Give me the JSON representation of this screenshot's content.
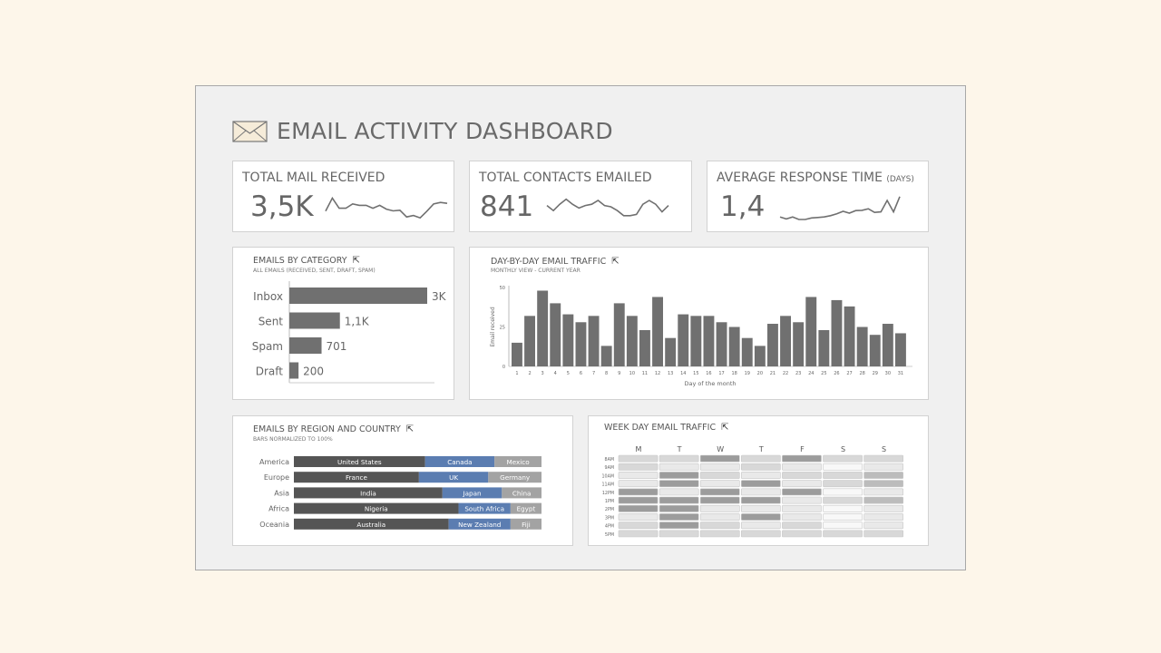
{
  "header": {
    "title": "EMAIL ACTIVITY DASHBOARD",
    "icon": "envelope-icon"
  },
  "kpis": [
    {
      "label": "TOTAL MAIL RECEIVED",
      "unit": "",
      "value": "3,5K",
      "sparkline": [
        0.35,
        0.8,
        0.45,
        0.45,
        0.6,
        0.55,
        0.55,
        0.45,
        0.55,
        0.42,
        0.36,
        0.38,
        0.15,
        0.2,
        0.12,
        0.35,
        0.6,
        0.65,
        0.62
      ]
    },
    {
      "label": "TOTAL CONTACTS EMAILED",
      "unit": "",
      "value": "841",
      "sparkline": [
        0.55,
        0.35,
        0.6,
        0.8,
        0.6,
        0.45,
        0.55,
        0.6,
        0.75,
        0.55,
        0.5,
        0.35,
        0.15,
        0.15,
        0.2,
        0.6,
        0.75,
        0.6,
        0.3,
        0.55
      ]
    },
    {
      "label": "AVERAGE RESPONSE TIME",
      "unit": "(DAYS)",
      "value": "1,4",
      "sparkline": [
        0.1,
        0.02,
        0.1,
        0.0,
        0.0,
        0.06,
        0.08,
        0.1,
        0.15,
        0.22,
        0.32,
        0.25,
        0.35,
        0.36,
        0.42,
        0.28,
        0.3,
        0.75,
        0.3,
        0.9
      ]
    }
  ],
  "category": {
    "title": "EMAILS BY CATEGORY",
    "subtitle": "ALL EMAILS (RECEIVED, SENT, DRAFT, SPAM)",
    "chart_data": {
      "type": "bar",
      "orientation": "horizontal",
      "categories": [
        "Inbox",
        "Sent",
        "Spam",
        "Draft"
      ],
      "values": [
        3000,
        1100,
        701,
        200
      ],
      "labels": [
        "3K",
        "1,1K",
        "701",
        "200"
      ],
      "color": "#707070"
    }
  },
  "daily": {
    "title": "DAY-BY-DAY EMAIL TRAFFIC",
    "subtitle": "MONTHLY VIEW - CURRENT YEAR",
    "chart_data": {
      "type": "bar",
      "xlabel": "Day of the month",
      "ylabel": "Email received",
      "ylim": [
        0,
        50
      ],
      "yticks": [
        "0",
        "25",
        "50"
      ],
      "categories": [
        "1",
        "2",
        "3",
        "4",
        "5",
        "6",
        "7",
        "8",
        "9",
        "10",
        "11",
        "12",
        "13",
        "14",
        "15",
        "16",
        "17",
        "18",
        "19",
        "20",
        "21",
        "22",
        "23",
        "24",
        "25",
        "26",
        "27",
        "28",
        "29",
        "30",
        "31"
      ],
      "values": [
        15,
        32,
        48,
        40,
        33,
        28,
        32,
        13,
        40,
        32,
        23,
        44,
        18,
        33,
        32,
        32,
        28,
        25,
        18,
        13,
        27,
        32,
        28,
        44,
        23,
        42,
        38,
        25,
        20,
        27,
        21
      ],
      "color": "#707070",
      "grid": false
    }
  },
  "region": {
    "title": "EMAILS BY REGION AND COUNTRY",
    "subtitle": "BARS NORMALIZED TO 100%",
    "chart_data": {
      "type": "bar",
      "stacked": "100%",
      "orientation": "horizontal",
      "colors": [
        "#555555",
        "#5b7db1",
        "#a3a3a3"
      ],
      "rows": [
        {
          "region": "America",
          "segments": [
            {
              "name": "United States",
              "value": 53
            },
            {
              "name": "Canada",
              "value": 28
            },
            {
              "name": "Mexico",
              "value": 19
            }
          ]
        },
        {
          "region": "Europe",
          "segments": [
            {
              "name": "France",
              "value": 50.5
            },
            {
              "name": "UK",
              "value": 28
            },
            {
              "name": "Germany",
              "value": 21.5
            }
          ]
        },
        {
          "region": "Asia",
          "segments": [
            {
              "name": "India",
              "value": 60
            },
            {
              "name": "Japan",
              "value": 24
            },
            {
              "name": "China",
              "value": 16
            }
          ]
        },
        {
          "region": "Africa",
          "segments": [
            {
              "name": "Nigeria",
              "value": 66.5
            },
            {
              "name": "South Africa",
              "value": 21
            },
            {
              "name": "Egypt",
              "value": 12.5
            }
          ]
        },
        {
          "region": "Oceania",
          "segments": [
            {
              "name": "Australia",
              "value": 62.5
            },
            {
              "name": "New Zealand",
              "value": 25
            },
            {
              "name": "Fiji",
              "value": 12.5
            }
          ]
        }
      ]
    }
  },
  "weekday": {
    "title": "WEEK DAY EMAIL TRAFFIC",
    "chart_data": {
      "type": "heatmap",
      "columns": [
        "M",
        "T",
        "W",
        "T",
        "F",
        "S",
        "S"
      ],
      "rows": [
        "8AM",
        "9AM",
        "10AM",
        "11AM",
        "12PM",
        "1PM",
        "2PM",
        "3PM",
        "4PM",
        "5PM"
      ],
      "levels": [
        [
          2,
          2,
          4,
          2,
          4,
          2,
          2
        ],
        [
          2,
          1,
          1,
          2,
          1,
          0,
          1
        ],
        [
          1,
          4,
          2,
          1,
          2,
          2,
          3
        ],
        [
          1,
          4,
          1,
          4,
          1,
          2,
          3
        ],
        [
          4,
          1,
          4,
          1,
          4,
          0,
          1
        ],
        [
          4,
          4,
          4,
          4,
          1,
          2,
          3
        ],
        [
          4,
          4,
          1,
          1,
          1,
          0,
          1
        ],
        [
          1,
          4,
          1,
          4,
          1,
          0,
          1
        ],
        [
          2,
          4,
          2,
          1,
          2,
          0,
          1
        ],
        [
          2,
          2,
          2,
          2,
          2,
          2,
          2
        ]
      ],
      "scale": [
        "#f8f8f8",
        "#e9e9e9",
        "#d8d8d8",
        "#bcbcbc",
        "#9c9c9c"
      ]
    }
  }
}
